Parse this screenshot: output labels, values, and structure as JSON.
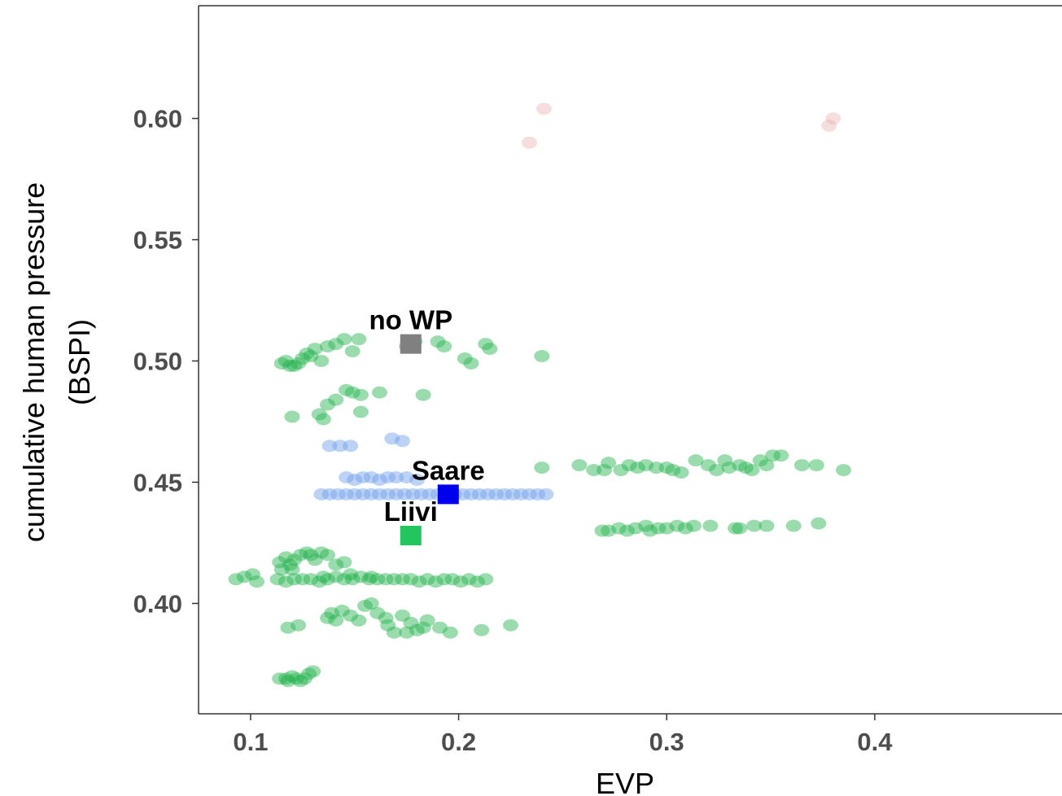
{
  "chart_data": {
    "type": "scatter",
    "xlabel": "EVP",
    "ylabel_lines": [
      "cumulative human pressure",
      "(BSPI)"
    ],
    "xlim": [
      0.075,
      0.49
    ],
    "ylim": [
      0.3545,
      0.6465
    ],
    "x_ticks": [
      0.1,
      0.2,
      0.3,
      0.4
    ],
    "x_tick_labels": [
      "0.1",
      "0.2",
      "0.3",
      "0.4"
    ],
    "y_ticks": [
      0.4,
      0.45,
      0.5,
      0.55,
      0.6
    ],
    "y_tick_labels": [
      "0.40",
      "0.45",
      "0.50",
      "0.55",
      "0.60"
    ],
    "grid": false,
    "series": [
      {
        "color": "#22b14c",
        "opacity": 0.45,
        "points": [
          [
            0.093,
            0.41
          ],
          [
            0.097,
            0.411
          ],
          [
            0.101,
            0.412
          ],
          [
            0.103,
            0.409
          ],
          [
            0.115,
            0.499
          ],
          [
            0.117,
            0.5
          ],
          [
            0.119,
            0.498
          ],
          [
            0.121,
            0.498
          ],
          [
            0.123,
            0.499
          ],
          [
            0.125,
            0.501
          ],
          [
            0.127,
            0.503
          ],
          [
            0.129,
            0.502
          ],
          [
            0.131,
            0.505
          ],
          [
            0.134,
            0.5
          ],
          [
            0.137,
            0.506
          ],
          [
            0.141,
            0.507
          ],
          [
            0.145,
            0.509
          ],
          [
            0.149,
            0.504
          ],
          [
            0.152,
            0.509
          ],
          [
            0.175,
            0.506
          ],
          [
            0.179,
            0.508
          ],
          [
            0.19,
            0.508
          ],
          [
            0.193,
            0.506
          ],
          [
            0.203,
            0.501
          ],
          [
            0.206,
            0.499
          ],
          [
            0.213,
            0.507
          ],
          [
            0.215,
            0.505
          ],
          [
            0.24,
            0.502
          ],
          [
            0.12,
            0.477
          ],
          [
            0.133,
            0.478
          ],
          [
            0.135,
            0.476
          ],
          [
            0.137,
            0.482
          ],
          [
            0.141,
            0.484
          ],
          [
            0.146,
            0.488
          ],
          [
            0.149,
            0.487
          ],
          [
            0.153,
            0.486
          ],
          [
            0.153,
            0.479
          ],
          [
            0.162,
            0.487
          ],
          [
            0.183,
            0.486
          ],
          [
            0.258,
            0.457
          ],
          [
            0.265,
            0.455
          ],
          [
            0.27,
            0.455
          ],
          [
            0.272,
            0.458
          ],
          [
            0.278,
            0.455
          ],
          [
            0.282,
            0.457
          ],
          [
            0.286,
            0.456
          ],
          [
            0.29,
            0.457
          ],
          [
            0.295,
            0.456
          ],
          [
            0.3,
            0.456
          ],
          [
            0.303,
            0.455
          ],
          [
            0.307,
            0.454
          ],
          [
            0.314,
            0.459
          ],
          [
            0.32,
            0.457
          ],
          [
            0.324,
            0.455
          ],
          [
            0.328,
            0.459
          ],
          [
            0.33,
            0.456
          ],
          [
            0.335,
            0.457
          ],
          [
            0.338,
            0.456
          ],
          [
            0.341,
            0.455
          ],
          [
            0.345,
            0.459
          ],
          [
            0.348,
            0.457
          ],
          [
            0.351,
            0.461
          ],
          [
            0.355,
            0.461
          ],
          [
            0.365,
            0.457
          ],
          [
            0.372,
            0.457
          ],
          [
            0.385,
            0.455
          ],
          [
            0.24,
            0.456
          ],
          [
            0.269,
            0.43
          ],
          [
            0.272,
            0.43
          ],
          [
            0.277,
            0.431
          ],
          [
            0.281,
            0.43
          ],
          [
            0.285,
            0.431
          ],
          [
            0.29,
            0.432
          ],
          [
            0.292,
            0.43
          ],
          [
            0.296,
            0.431
          ],
          [
            0.3,
            0.431
          ],
          [
            0.305,
            0.432
          ],
          [
            0.309,
            0.431
          ],
          [
            0.313,
            0.432
          ],
          [
            0.321,
            0.432
          ],
          [
            0.333,
            0.431
          ],
          [
            0.335,
            0.431
          ],
          [
            0.342,
            0.432
          ],
          [
            0.348,
            0.432
          ],
          [
            0.361,
            0.432
          ],
          [
            0.373,
            0.433
          ],
          [
            0.114,
            0.417
          ],
          [
            0.117,
            0.419
          ],
          [
            0.119,
            0.416
          ],
          [
            0.121,
            0.418
          ],
          [
            0.124,
            0.42
          ],
          [
            0.127,
            0.421
          ],
          [
            0.129,
            0.42
          ],
          [
            0.131,
            0.418
          ],
          [
            0.134,
            0.421
          ],
          [
            0.137,
            0.42
          ],
          [
            0.141,
            0.416
          ],
          [
            0.145,
            0.417
          ],
          [
            0.115,
            0.414
          ],
          [
            0.12,
            0.414
          ],
          [
            0.113,
            0.41
          ],
          [
            0.117,
            0.409
          ],
          [
            0.121,
            0.41
          ],
          [
            0.125,
            0.41
          ],
          [
            0.129,
            0.41
          ],
          [
            0.133,
            0.409
          ],
          [
            0.137,
            0.41
          ],
          [
            0.141,
            0.411
          ],
          [
            0.145,
            0.41
          ],
          [
            0.149,
            0.41
          ],
          [
            0.153,
            0.411
          ],
          [
            0.157,
            0.41
          ],
          [
            0.161,
            0.41
          ],
          [
            0.165,
            0.41
          ],
          [
            0.169,
            0.41
          ],
          [
            0.173,
            0.41
          ],
          [
            0.177,
            0.41
          ],
          [
            0.181,
            0.409
          ],
          [
            0.185,
            0.41
          ],
          [
            0.189,
            0.409
          ],
          [
            0.193,
            0.41
          ],
          [
            0.197,
            0.41
          ],
          [
            0.201,
            0.409
          ],
          [
            0.205,
            0.41
          ],
          [
            0.209,
            0.409
          ],
          [
            0.213,
            0.41
          ],
          [
            0.148,
            0.412
          ],
          [
            0.158,
            0.411
          ],
          [
            0.135,
            0.411
          ],
          [
            0.118,
            0.39
          ],
          [
            0.123,
            0.391
          ],
          [
            0.137,
            0.394
          ],
          [
            0.139,
            0.396
          ],
          [
            0.141,
            0.393
          ],
          [
            0.144,
            0.397
          ],
          [
            0.148,
            0.395
          ],
          [
            0.152,
            0.393
          ],
          [
            0.155,
            0.399
          ],
          [
            0.158,
            0.4
          ],
          [
            0.161,
            0.396
          ],
          [
            0.165,
            0.394
          ],
          [
            0.166,
            0.391
          ],
          [
            0.169,
            0.388
          ],
          [
            0.173,
            0.395
          ],
          [
            0.177,
            0.392
          ],
          [
            0.18,
            0.389
          ],
          [
            0.183,
            0.39
          ],
          [
            0.185,
            0.393
          ],
          [
            0.191,
            0.39
          ],
          [
            0.196,
            0.388
          ],
          [
            0.211,
            0.389
          ],
          [
            0.225,
            0.391
          ],
          [
            0.175,
            0.388
          ],
          [
            0.114,
            0.369
          ],
          [
            0.117,
            0.369
          ],
          [
            0.12,
            0.37
          ],
          [
            0.122,
            0.369
          ],
          [
            0.124,
            0.368
          ],
          [
            0.126,
            0.369
          ],
          [
            0.128,
            0.371
          ],
          [
            0.13,
            0.372
          ],
          [
            0.118,
            0.368
          ]
        ]
      },
      {
        "color": "#6d9eeb",
        "opacity": 0.45,
        "points": [
          [
            0.134,
            0.445
          ],
          [
            0.138,
            0.445
          ],
          [
            0.142,
            0.445
          ],
          [
            0.146,
            0.445
          ],
          [
            0.15,
            0.445
          ],
          [
            0.154,
            0.445
          ],
          [
            0.158,
            0.445
          ],
          [
            0.162,
            0.445
          ],
          [
            0.166,
            0.445
          ],
          [
            0.17,
            0.445
          ],
          [
            0.174,
            0.445
          ],
          [
            0.178,
            0.445
          ],
          [
            0.182,
            0.445
          ],
          [
            0.186,
            0.445
          ],
          [
            0.19,
            0.445
          ],
          [
            0.194,
            0.445
          ],
          [
            0.198,
            0.445
          ],
          [
            0.202,
            0.445
          ],
          [
            0.206,
            0.445
          ],
          [
            0.21,
            0.445
          ],
          [
            0.214,
            0.445
          ],
          [
            0.218,
            0.445
          ],
          [
            0.222,
            0.445
          ],
          [
            0.226,
            0.445
          ],
          [
            0.23,
            0.445
          ],
          [
            0.234,
            0.445
          ],
          [
            0.238,
            0.445
          ],
          [
            0.242,
            0.445
          ],
          [
            0.146,
            0.452
          ],
          [
            0.15,
            0.451
          ],
          [
            0.154,
            0.452
          ],
          [
            0.158,
            0.452
          ],
          [
            0.162,
            0.451
          ],
          [
            0.166,
            0.452
          ],
          [
            0.17,
            0.452
          ],
          [
            0.175,
            0.452
          ],
          [
            0.18,
            0.451
          ],
          [
            0.138,
            0.465
          ],
          [
            0.143,
            0.465
          ],
          [
            0.148,
            0.465
          ],
          [
            0.168,
            0.468
          ],
          [
            0.173,
            0.467
          ]
        ]
      },
      {
        "color": "#e8a0a0",
        "opacity": 0.35,
        "points": [
          [
            0.241,
            0.604
          ],
          [
            0.234,
            0.59
          ],
          [
            0.378,
            0.597
          ],
          [
            0.38,
            0.6
          ]
        ]
      }
    ],
    "highlighted": [
      {
        "label": "no WP",
        "x": 0.177,
        "y": 0.507,
        "color": "#808080"
      },
      {
        "label": "Saare",
        "x": 0.195,
        "y": 0.445,
        "color": "#0000ee"
      },
      {
        "label": "Liivi",
        "x": 0.177,
        "y": 0.428,
        "color": "#22c55e"
      }
    ]
  }
}
